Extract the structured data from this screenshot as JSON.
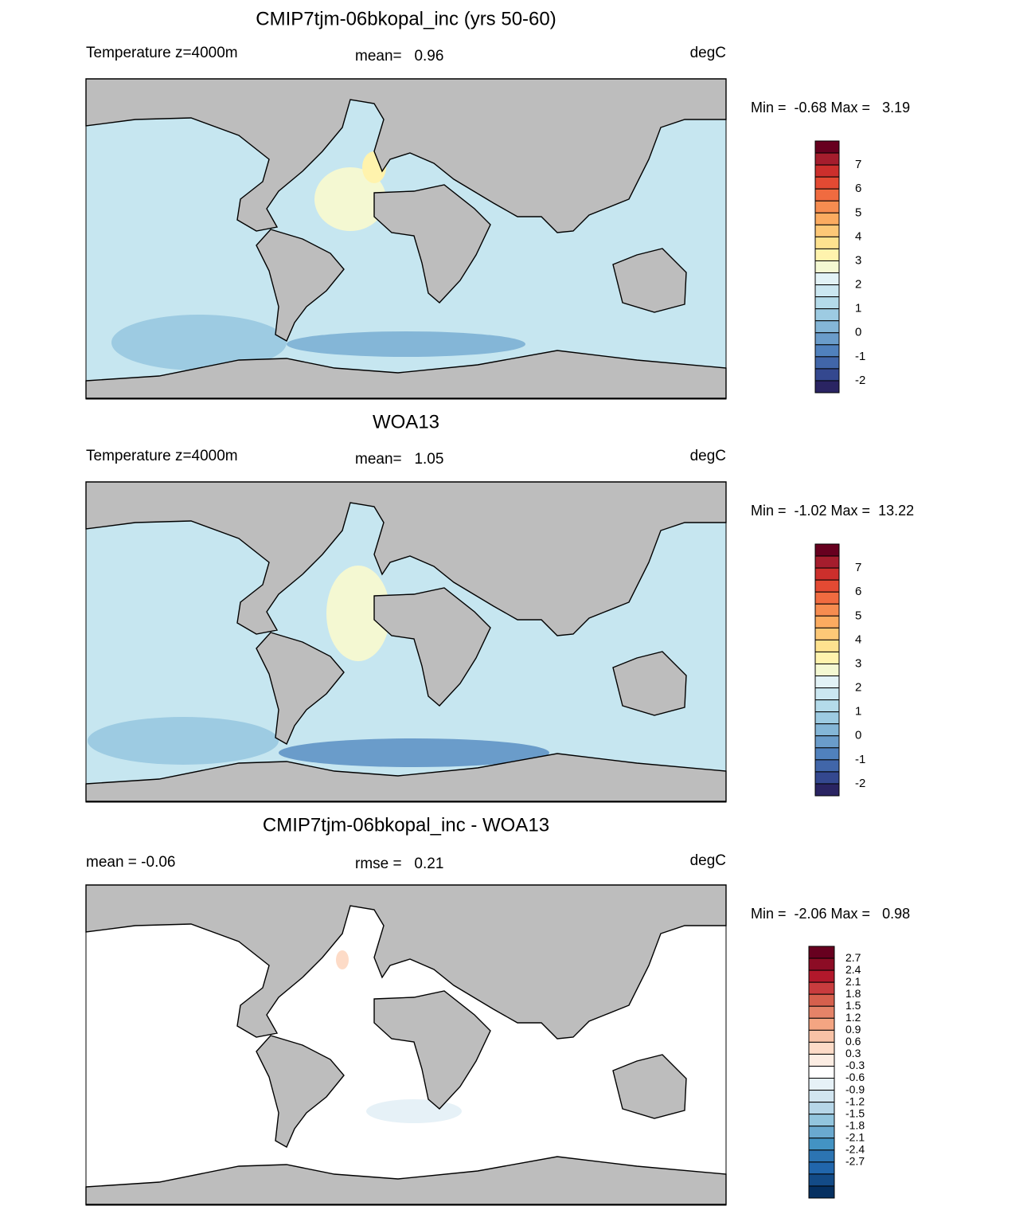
{
  "panels": [
    {
      "title": "CMIP7tjm-06bkopal_inc (yrs 50-60)",
      "left_label": "Temperature z=4000m",
      "center_label": "mean=   0.96",
      "units": "degC",
      "range_label": "Min =  -0.68 Max =   3.19",
      "colorbar": {
        "labels": [
          "7",
          "6",
          "5",
          "4",
          "3",
          "2",
          "1",
          "0",
          "-1",
          "-2"
        ],
        "colors": [
          "#67001f",
          "#a51d2d",
          "#cc2f2c",
          "#e34a33",
          "#f06b40",
          "#f68c50",
          "#fbab60",
          "#fdc877",
          "#fee28f",
          "#fff3ad",
          "#f4f8d2",
          "#e2f2f6",
          "#cbe7f1",
          "#b4dbea",
          "#9dcbe2",
          "#84b6d7",
          "#6a9cca",
          "#5081bd",
          "#4166a9",
          "#34488f",
          "#2a2462"
        ]
      }
    },
    {
      "title": "WOA13",
      "left_label": "Temperature z=4000m",
      "center_label": "mean=   1.05",
      "units": "degC",
      "range_label": "Min =  -1.02 Max =  13.22",
      "colorbar": {
        "labels": [
          "7",
          "6",
          "5",
          "4",
          "3",
          "2",
          "1",
          "0",
          "-1",
          "-2"
        ],
        "colors": [
          "#67001f",
          "#a51d2d",
          "#cc2f2c",
          "#e34a33",
          "#f06b40",
          "#f68c50",
          "#fbab60",
          "#fdc877",
          "#fee28f",
          "#fff3ad",
          "#f4f8d2",
          "#e2f2f6",
          "#cbe7f1",
          "#b4dbea",
          "#9dcbe2",
          "#84b6d7",
          "#6a9cca",
          "#5081bd",
          "#4166a9",
          "#34488f",
          "#2a2462"
        ]
      }
    },
    {
      "title": "CMIP7tjm-06bkopal_inc - WOA13",
      "left_label": "mean =  -0.06",
      "center_label": "rmse =   0.21",
      "units": "degC",
      "range_label": "Min =  -2.06 Max =   0.98",
      "colorbar": {
        "labels": [
          "2.7",
          "2.4",
          "2.1",
          "1.8",
          "1.5",
          "1.2",
          "0.9",
          "0.6",
          "0.3",
          "-0.3",
          "-0.6",
          "-0.9",
          "-1.2",
          "-1.5",
          "-1.8",
          "-2.1",
          "-2.4",
          "-2.7"
        ],
        "colors": [
          "#67001f",
          "#8c0c25",
          "#b2182b",
          "#c83c3e",
          "#d6604d",
          "#e58368",
          "#f4a582",
          "#f8c2a6",
          "#fddbc7",
          "#fcede3",
          "#ffffff",
          "#e6f1f7",
          "#d1e5f0",
          "#b6d6e8",
          "#92c5de",
          "#6aa9cf",
          "#4393c3",
          "#2c74b2",
          "#2166ac",
          "#134b87",
          "#053061"
        ]
      }
    }
  ]
}
